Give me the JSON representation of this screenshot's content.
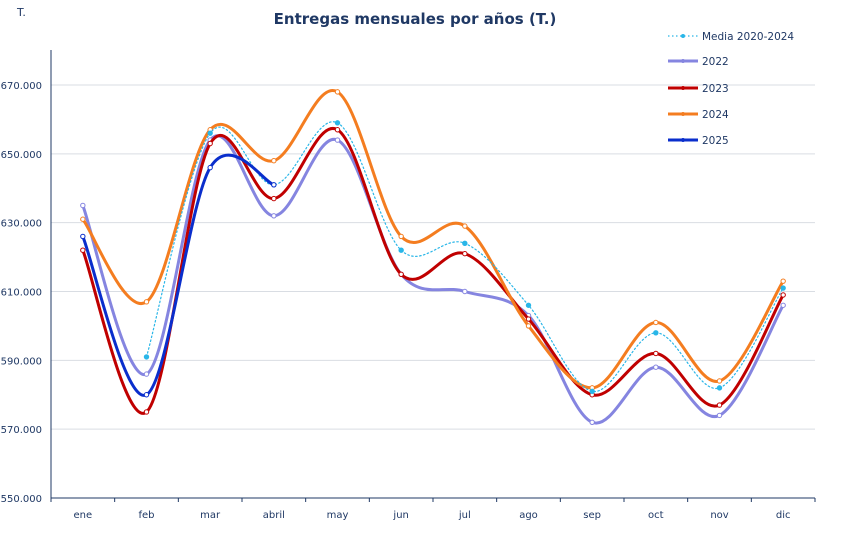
{
  "chart_data": {
    "type": "line",
    "title": "Entregas mensuales por años (T.)",
    "ylabel": "T.",
    "xlabel": "",
    "categories": [
      "ene",
      "feb",
      "mar",
      "abril",
      "may",
      "jun",
      "jul",
      "ago",
      "sep",
      "oct",
      "nov",
      "dic"
    ],
    "ylim": [
      550000,
      670000
    ],
    "yticks": [
      "550.000",
      "570.000",
      "590.000",
      "610.000",
      "630.000",
      "650.000",
      "670.000"
    ],
    "grid": true,
    "legend_position": "top-right",
    "series": [
      {
        "name": "Media 2020-2024",
        "color": "#29B6E8",
        "style": "dotted",
        "values": [
          null,
          591000,
          656000,
          641000,
          659000,
          622000,
          624000,
          606000,
          581000,
          598000,
          582000,
          611000
        ]
      },
      {
        "name": "2022",
        "color": "#8585E0",
        "style": "solid",
        "values": [
          635000,
          586000,
          654000,
          632000,
          654000,
          615000,
          610000,
          603000,
          572000,
          588000,
          574000,
          606000
        ]
      },
      {
        "name": "2023",
        "color": "#C00000",
        "style": "solid",
        "values": [
          622000,
          575000,
          653000,
          637000,
          657000,
          615000,
          621000,
          602000,
          580000,
          592000,
          577000,
          609000
        ]
      },
      {
        "name": "2024",
        "color": "#F47D20",
        "style": "solid",
        "values": [
          631000,
          607000,
          657000,
          648000,
          668000,
          626000,
          629000,
          600000,
          582000,
          601000,
          584000,
          613000
        ]
      },
      {
        "name": "2025",
        "color": "#0A2ECC",
        "style": "solid",
        "values": [
          626000,
          580000,
          646000,
          641000,
          null,
          null,
          null,
          null,
          null,
          null,
          null,
          null
        ]
      }
    ]
  }
}
